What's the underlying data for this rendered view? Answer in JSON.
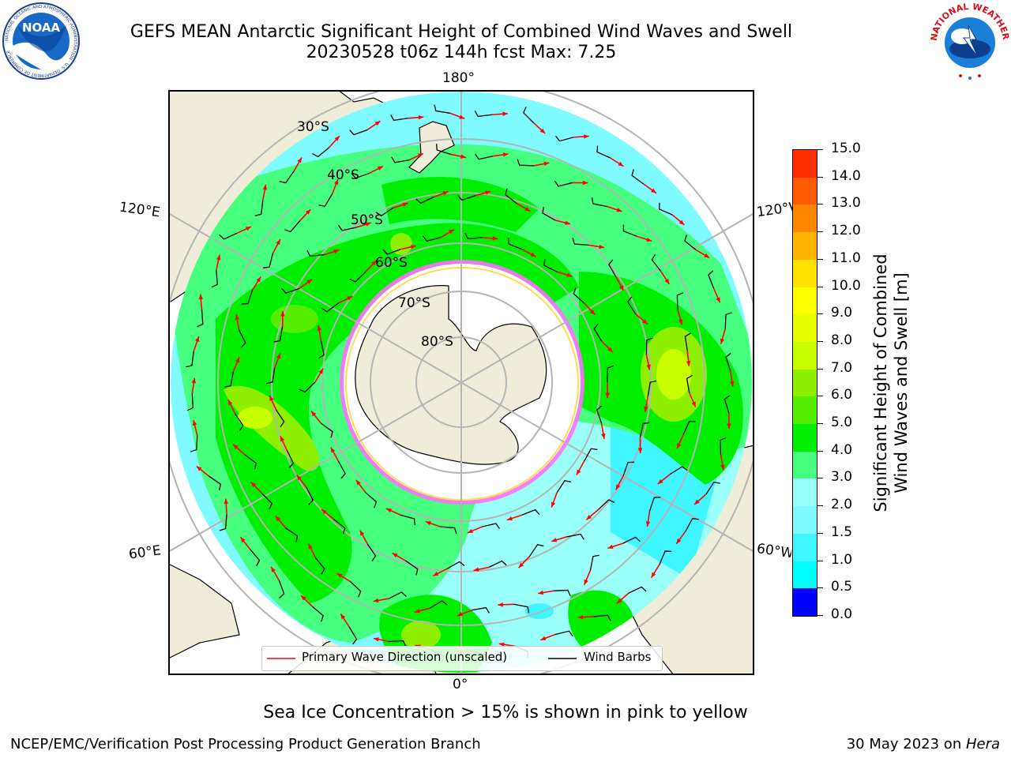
{
  "header": {
    "title_line1": "GEFS MEAN Antarctic Significant Height of Combined Wind Waves and Swell",
    "title_line2": "20230528 t06z 144h fcst   Max: 7.25"
  },
  "logos": {
    "noaa_text": "NOAA",
    "noaa_ring": "NATIONAL OCEANIC AND ATMOSPHERIC ADMINISTRATION · U.S. DEPARTMENT OF COMMERCE",
    "nws_ring": "NATIONAL WEATHER SERVICE"
  },
  "map": {
    "projection": "south polar stereographic",
    "longitude_labels": {
      "top": "180°",
      "bottom": "0°",
      "left_upper": "120°E",
      "left_lower": "60°E",
      "right_upper": "120°W",
      "right_lower": "60°W"
    },
    "latitude_labels": [
      "30°S",
      "40°S",
      "50°S",
      "60°S",
      "70°S",
      "80°S"
    ],
    "colors": {
      "land": "#efedd9",
      "ice_edge": "#e040e0",
      "grid": "#b4b4b4",
      "arrows": "#ff0000",
      "barbs": "#000000"
    }
  },
  "legend": {
    "primary_label": "Primary Wave Direction (unscaled)",
    "barbs_label": "Wind Barbs"
  },
  "colorbar": {
    "label_line1": "Significant Height of Combined",
    "label_line2": "Wind Waves and Swell [m]",
    "ticks": [
      "15.0",
      "14.0",
      "13.0",
      "12.0",
      "11.0",
      "10.0",
      "9.0",
      "8.0",
      "7.0",
      "6.0",
      "5.0",
      "4.0",
      "3.0",
      "2.0",
      "1.5",
      "1.0",
      "0.5",
      "0.0"
    ],
    "colors": [
      "#0000ff",
      "#0073ff",
      "#00ffff",
      "#3ff5ff",
      "#7ffaff",
      "#99fff8",
      "#47ff7f",
      "#00ee00",
      "#55ee00",
      "#8ef000",
      "#c7ff00",
      "#e5ff00",
      "#ffff00",
      "#ffe100",
      "#ffb400",
      "#ff8700",
      "#ff5a00",
      "#ff2d00",
      "#ff0000"
    ]
  },
  "footer": {
    "note": "Sea Ice Concentration > 15% is shown in pink to yellow",
    "credit": "NCEP/EMC/Verification Post Processing Product Generation Branch",
    "date": "30 May 2023 on ",
    "machine": "Hera"
  }
}
